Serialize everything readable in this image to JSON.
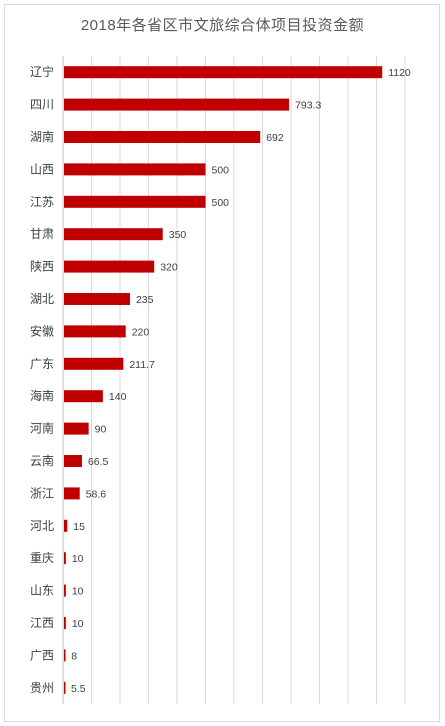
{
  "chart_data": {
    "type": "bar",
    "orientation": "horizontal",
    "title": "2018年各省区市文旅综合体项目投资金额",
    "categories": [
      "辽宁",
      "四川",
      "湖南",
      "山西",
      "江苏",
      "甘肃",
      "陕西",
      "湖北",
      "安徽",
      "广东",
      "海南",
      "河南",
      "云南",
      "浙江",
      "河北",
      "重庆",
      "山东",
      "江西",
      "广西",
      "贵州"
    ],
    "values": [
      1120,
      793.3,
      692,
      500,
      500,
      350,
      320,
      235,
      220,
      211.7,
      140,
      90,
      66.5,
      58.6,
      15,
      10,
      10,
      10,
      8,
      5.5
    ],
    "value_labels": [
      "1120",
      "793.3",
      "692",
      "500",
      "500",
      "350",
      "320",
      "235",
      "220",
      "211.7",
      "140",
      "90",
      "66.5",
      "58.6",
      "15",
      "10",
      "10",
      "10",
      "8",
      "5.5"
    ],
    "xlim": [
      0,
      1200
    ],
    "grid": true,
    "data_labels": true,
    "legend": "none",
    "bar_color": "#c00000",
    "grid_color": "#d9d9d9"
  }
}
